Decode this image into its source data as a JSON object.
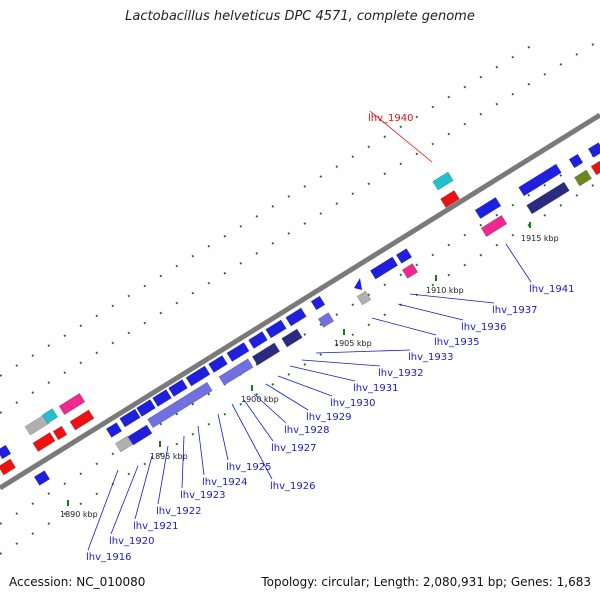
{
  "title": "Lactobacillus helveticus DPC 4571, complete genome",
  "footer": {
    "accession": "Accession: NC_010080",
    "summary": "Topology: circular; Length: 2,080,931 bp; Genes: 1,683"
  },
  "scale_labels": [
    "1890 kbp",
    "1895 kbp",
    "1900 kbp",
    "1905 kbp",
    "1910 kbp",
    "1915 kbp"
  ],
  "gene_labels": [
    {
      "text": "lhv_1916",
      "color": "#1a1acc"
    },
    {
      "text": "lhv_1920",
      "color": "#1a1acc"
    },
    {
      "text": "lhv_1921",
      "color": "#1a1acc"
    },
    {
      "text": "lhv_1922",
      "color": "#1a1acc"
    },
    {
      "text": "lhv_1923",
      "color": "#1a1acc"
    },
    {
      "text": "lhv_1924",
      "color": "#1a1acc"
    },
    {
      "text": "lhv_1925",
      "color": "#1a1acc"
    },
    {
      "text": "lhv_1926",
      "color": "#1a1acc"
    },
    {
      "text": "lhv_1927",
      "color": "#1a1acc"
    },
    {
      "text": "lhv_1928",
      "color": "#1a1acc"
    },
    {
      "text": "lhv_1929",
      "color": "#1a1acc"
    },
    {
      "text": "lhv_1930",
      "color": "#1a1acc"
    },
    {
      "text": "lhv_1931",
      "color": "#1a1acc"
    },
    {
      "text": "lhv_1932",
      "color": "#1a1acc"
    },
    {
      "text": "lhv_1933",
      "color": "#1a1acc"
    },
    {
      "text": "lhv_1935",
      "color": "#1a1acc"
    },
    {
      "text": "lhv_1936",
      "color": "#1a1acc"
    },
    {
      "text": "lhv_1937",
      "color": "#1a1acc"
    },
    {
      "text": "lhv_1941",
      "color": "#1a1acc"
    },
    {
      "text": "lhv_1940",
      "color": "#dd1111"
    }
  ],
  "colors": {
    "backbone": "#7a7a7a",
    "tick": "#1a7a1a",
    "gene_blue": "#1f1fe0",
    "gene_lightblue": "#7070e0",
    "gene_navy": "#2a2a80",
    "gene_red": "#ee1111",
    "gene_pink": "#ee2a90",
    "gene_cyan": "#20c0d0",
    "gene_olive": "#6a8a20",
    "gene_gray": "#b0b0b0"
  }
}
